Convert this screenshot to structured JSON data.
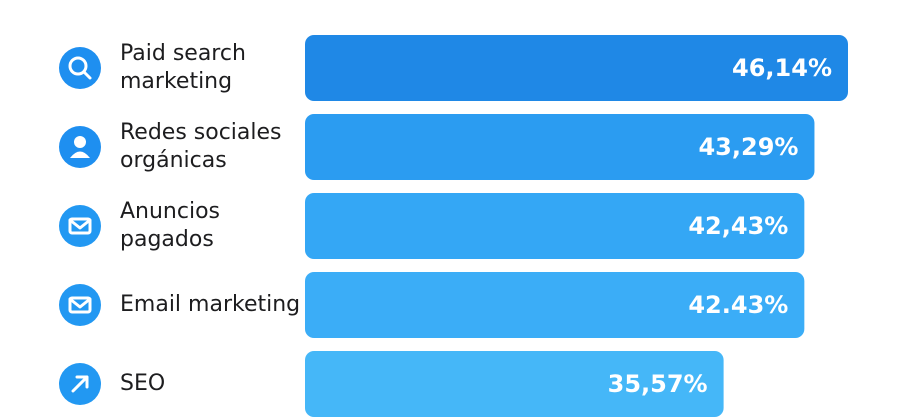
{
  "chart_data": {
    "type": "hbar",
    "categories": [
      "Paid search\nmarketing",
      "Redes sociales\norgánicas",
      "Anuncios\npagados",
      "Email marketing",
      "SEO"
    ],
    "values": [
      46.14,
      43.29,
      42.43,
      42.43,
      35.57
    ],
    "value_labels": [
      "46,14%",
      "43,29%",
      "42,43%",
      "42.43%",
      "35,57%"
    ],
    "colors": [
      "#1f88e6",
      "#2b9cf1",
      "#34a7f5",
      "#3badf7",
      "#45b7f8"
    ]
  }
}
